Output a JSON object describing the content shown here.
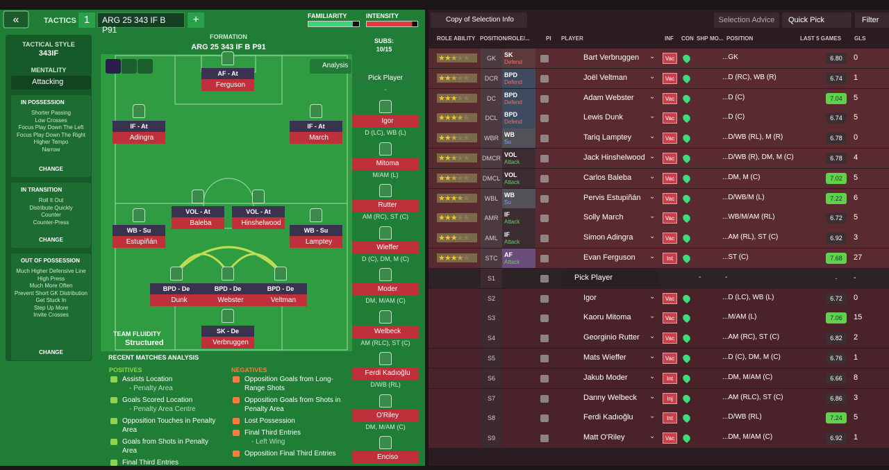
{
  "header": {
    "tactics_label": "TACTICS",
    "slot": "1",
    "tactic_name": "ARG 25 343 IF B P91",
    "familiarity": "FAMILIARITY",
    "intensity": "INTENSITY"
  },
  "sidebar": {
    "style_label": "TACTICAL STYLE",
    "style": "343IF",
    "mentality_label": "MENTALITY",
    "mentality": "Attacking",
    "sections": [
      {
        "title": "IN POSSESSION",
        "items": [
          "Shorter Passing",
          "Low Crosses",
          "Focus Play Down The Left",
          "Focus Play Down The Right",
          "Higher Tempo",
          "Narrow"
        ],
        "change": "CHANGE"
      },
      {
        "title": "IN TRANSITION",
        "items": [
          "Roll It Out",
          "Distribute Quickly",
          "Counter",
          "Counter-Press"
        ],
        "change": "CHANGE"
      },
      {
        "title": "OUT OF POSSESSION",
        "items": [
          "Much Higher Defensive Line",
          "High Press",
          "Much More Often",
          "Prevent Short GK Distribution",
          "Get Stuck In",
          "Step Up More",
          "Invite Crosses"
        ],
        "change": "CHANGE"
      }
    ]
  },
  "formation": {
    "label": "FORMATION",
    "name": "ARG 25 343 IF B P91",
    "analysis": "Analysis",
    "fluidity_label": "TEAM FLUIDITY",
    "fluidity": "Structured",
    "players": [
      {
        "role": "AF - At",
        "name": "Ferguson"
      },
      {
        "role": "IF - At",
        "name": "Adingra"
      },
      {
        "role": "IF - At",
        "name": "March"
      },
      {
        "role": "VOL - At",
        "name": "Baleba"
      },
      {
        "role": "VOL - At",
        "name": "Hinshelwood"
      },
      {
        "role": "WB - Su",
        "name": "Estupiñán"
      },
      {
        "role": "WB - Su",
        "name": "Lamptey"
      },
      {
        "role": "BPD - De",
        "name": "Dunk"
      },
      {
        "role": "BPD - De",
        "name": "Webster"
      },
      {
        "role": "BPD - De",
        "name": "Veltman"
      },
      {
        "role": "SK - De",
        "name": "Verbruggen"
      }
    ]
  },
  "subs": {
    "label": "SUBS:",
    "count": "10/15",
    "pick": "Pick Player",
    "pick_sub": "-",
    "players": [
      {
        "name": "Igor",
        "positions": "D (LC), WB (L)"
      },
      {
        "name": "Mitoma",
        "positions": "M/AM (L)"
      },
      {
        "name": "Rutter",
        "positions": "AM (RC), ST (C)"
      },
      {
        "name": "Wieffer",
        "positions": "D (C), DM, M (C)"
      },
      {
        "name": "Moder",
        "positions": "DM, M/AM (C)"
      },
      {
        "name": "Welbeck",
        "positions": "AM (RLC), ST (C)"
      },
      {
        "name": "Ferdi Kadıoğlu",
        "positions": "D/WB (RL)"
      },
      {
        "name": "O'Riley",
        "positions": "DM, M/AM (C)"
      },
      {
        "name": "Enciso",
        "positions": ""
      }
    ]
  },
  "analysis": {
    "title": "RECENT MATCHES ANALYSIS",
    "positives_title": "POSITIVES",
    "positives": [
      {
        "text": "Assists Location",
        "sub": "- Penalty Area"
      },
      {
        "text": "Goals Scored Location",
        "sub": "- Penalty Area Centre"
      },
      {
        "text": "Opposition Touches in Penalty Area"
      },
      {
        "text": "Goals from Shots in Penalty Area"
      },
      {
        "text": "Final Third Entries"
      }
    ],
    "negatives_title": "NEGATIVES",
    "negatives": [
      {
        "text": "Opposition Goals from Long-Range Shots"
      },
      {
        "text": "Opposition Goals from Shots in Penalty Area"
      },
      {
        "text": "Lost Possession"
      },
      {
        "text": "Final Third Entries",
        "sub": "- Left Wing"
      },
      {
        "text": "Opposition Final Third Entries"
      }
    ]
  },
  "toolbar": {
    "copy": "Copy of Selection Info",
    "advice": "Selection Advice",
    "quick_pick": "Quick Pick",
    "filter": "Filter"
  },
  "table": {
    "columns": [
      "ROLE ABILITY",
      "POSITION/ROLE/...",
      "PI",
      "PLAYER",
      "INF",
      "CON",
      "SHP",
      "MO...",
      "POSITION",
      "LAST 5 GAMES",
      "GLS"
    ],
    "rows": [
      {
        "ability": 2.5,
        "pos": "GK",
        "role": "SK",
        "duty": "Defend",
        "name": "Bart Verbruggen",
        "inf": "Vac",
        "position": "...GK",
        "rating": "6.80",
        "gls": 0
      },
      {
        "ability": 2.5,
        "pos": "DCR",
        "role": "BPD",
        "duty": "Defend",
        "name": "Joël Veltman",
        "inf": "Vac",
        "position": "...D (RC), WB (R)",
        "rating": "6.74",
        "gls": 1
      },
      {
        "ability": 3,
        "pos": "DC",
        "role": "BPD",
        "duty": "Defend",
        "name": "Adam Webster",
        "inf": "Vac",
        "position": "...D (C)",
        "rating": "7.04",
        "gls": 5
      },
      {
        "ability": 3.5,
        "pos": "DCL",
        "role": "BPD",
        "duty": "Defend",
        "name": "Lewis Dunk",
        "inf": "Vac",
        "position": "...D (C)",
        "rating": "6.74",
        "gls": 5
      },
      {
        "ability": 2.5,
        "pos": "WBR",
        "role": "WB",
        "duty": "Su",
        "name": "Tariq Lamptey",
        "inf": "Vac",
        "position": "...D/WB (RL), M (R)",
        "rating": "6.78",
        "gls": 0
      },
      {
        "ability": 2.5,
        "pos": "DMCR",
        "role": "VOL",
        "duty": "Attack",
        "name": "Jack Hinshelwood",
        "inf": "Vac",
        "position": "...D/WB (R), DM, M (C)",
        "rating": "6.78",
        "gls": 4
      },
      {
        "ability": 2.5,
        "pos": "DMCL",
        "role": "VOL",
        "duty": "Attack",
        "name": "Carlos Baleba",
        "inf": "Vac",
        "position": "...DM, M (C)",
        "rating": "7.02",
        "gls": 5
      },
      {
        "ability": 3.5,
        "pos": "WBL",
        "role": "WB",
        "duty": "Su",
        "name": "Pervis Estupiñán",
        "inf": "Vac",
        "position": "...D/WB/M (L)",
        "rating": "7.22",
        "gls": 6
      },
      {
        "ability": 3,
        "pos": "AMR",
        "role": "IF",
        "duty": "Attack",
        "name": "Solly March",
        "inf": "Vac",
        "position": "...WB/M/AM (RL)",
        "rating": "6.72",
        "gls": 5
      },
      {
        "ability": 3,
        "pos": "AML",
        "role": "IF",
        "duty": "Attack",
        "name": "Simon Adingra",
        "inf": "Vac",
        "position": "...AM (RL), ST (C)",
        "rating": "6.92",
        "gls": 3
      },
      {
        "ability": 3.5,
        "pos": "STC",
        "role": "AF",
        "duty": "Attack",
        "name": "Evan Ferguson",
        "inf": "Int",
        "position": "...ST (C)",
        "rating": "7.68",
        "gls": 27
      },
      {
        "pos": "S1",
        "name": "Pick Player",
        "position": "-",
        "rating": "-",
        "gls": "-",
        "shp": "-"
      },
      {
        "pos": "S2",
        "name": "Igor",
        "inf": "Vac",
        "position": "...D (LC), WB (L)",
        "rating": "6.72",
        "gls": 0
      },
      {
        "pos": "S3",
        "name": "Kaoru Mitoma",
        "inf": "Vac",
        "position": "...M/AM (L)",
        "rating": "7.06",
        "gls": 15
      },
      {
        "pos": "S4",
        "name": "Georginio Rutter",
        "inf": "Vac",
        "position": "...AM (RC), ST (C)",
        "rating": "6.82",
        "gls": 2
      },
      {
        "pos": "S5",
        "name": "Mats Wieffer",
        "inf": "Vac",
        "position": "...D (C), DM, M (C)",
        "rating": "6.76",
        "gls": 1
      },
      {
        "pos": "S6",
        "name": "Jakub Moder",
        "inf": "Int",
        "position": "...DM, M/AM (C)",
        "rating": "6.66",
        "gls": 8
      },
      {
        "pos": "S7",
        "name": "Danny Welbeck",
        "inf": "Inj",
        "position": "...AM (RLC), ST (C)",
        "rating": "6.86",
        "gls": 3
      },
      {
        "pos": "S8",
        "name": "Ferdi Kadıoğlu",
        "inf": "Int",
        "position": "...D/WB (RL)",
        "rating": "7.24",
        "gls": 5
      },
      {
        "pos": "S9",
        "name": "Matt O'Riley",
        "inf": "Vac",
        "position": "...DM, M/AM (C)",
        "rating": "6.92",
        "gls": 1
      }
    ]
  }
}
